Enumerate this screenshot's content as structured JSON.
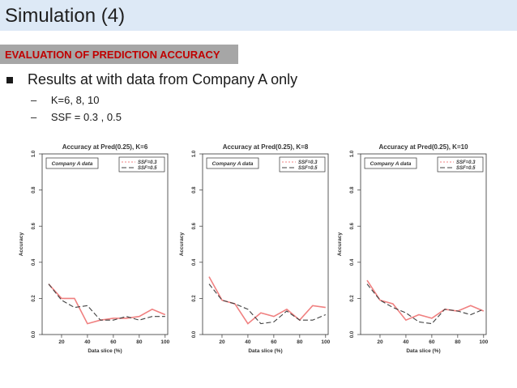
{
  "slide": {
    "title": "Simulation (4)",
    "section": "EVALUATION OF PREDICTION ACCURACY",
    "bullet": "Results at with data from Company A only",
    "subs": [
      "K=6, 8, 10",
      "SSF = 0.3 , 0.5"
    ],
    "dash": "–"
  },
  "colors": {
    "title_bg": "#dde9f6",
    "section_bg": "#a6a6a6",
    "section_text": "#c00000",
    "ssf03": "#f08080",
    "ssf05": "#404040"
  },
  "chart_data": [
    {
      "type": "line",
      "title": "Accuracy at Pred(0.25), K=6",
      "xlabel": "Data slice (%)",
      "ylabel": "Accuracy",
      "legend_box": "Company A data",
      "xlim": [
        5,
        102
      ],
      "ylim": [
        0,
        1
      ],
      "xticks": [
        20,
        40,
        60,
        80,
        100
      ],
      "yticks": [
        0.0,
        0.2,
        0.4,
        0.6,
        0.8,
        1.0
      ],
      "x": [
        10,
        20,
        30,
        40,
        50,
        60,
        70,
        80,
        90,
        100
      ],
      "series": [
        {
          "name": "SSF=0.3",
          "values": [
            0.28,
            0.2,
            0.2,
            0.06,
            0.08,
            0.09,
            0.09,
            0.1,
            0.14,
            0.11
          ]
        },
        {
          "name": "SSF=0.5",
          "values": [
            0.28,
            0.19,
            0.15,
            0.16,
            0.08,
            0.08,
            0.1,
            0.08,
            0.1,
            0.1
          ]
        }
      ]
    },
    {
      "type": "line",
      "title": "Accuracy at Pred(0.25), K=8",
      "xlabel": "Data slice (%)",
      "ylabel": "Accuracy",
      "legend_box": "Company A data",
      "xlim": [
        5,
        102
      ],
      "ylim": [
        0,
        1
      ],
      "xticks": [
        20,
        40,
        60,
        80,
        100
      ],
      "yticks": [
        0.0,
        0.2,
        0.4,
        0.6,
        0.8,
        1.0
      ],
      "x": [
        10,
        20,
        30,
        40,
        50,
        60,
        70,
        80,
        90,
        100
      ],
      "series": [
        {
          "name": "SSF=0.3",
          "values": [
            0.32,
            0.19,
            0.17,
            0.06,
            0.12,
            0.1,
            0.14,
            0.08,
            0.16,
            0.15
          ]
        },
        {
          "name": "SSF=0.5",
          "values": [
            0.28,
            0.19,
            0.17,
            0.14,
            0.06,
            0.07,
            0.13,
            0.08,
            0.08,
            0.11
          ]
        }
      ]
    },
    {
      "type": "line",
      "title": "Accuracy at Pred(0.25), K=10",
      "xlabel": "Data slice (%)",
      "ylabel": "Accuracy",
      "legend_box": "Company A data",
      "xlim": [
        5,
        102
      ],
      "ylim": [
        0,
        1
      ],
      "xticks": [
        20,
        40,
        60,
        80,
        100
      ],
      "yticks": [
        0.0,
        0.2,
        0.4,
        0.6,
        0.8,
        1.0
      ],
      "x": [
        10,
        20,
        30,
        40,
        50,
        60,
        70,
        80,
        90,
        100
      ],
      "series": [
        {
          "name": "SSF=0.3",
          "values": [
            0.3,
            0.19,
            0.17,
            0.08,
            0.11,
            0.09,
            0.14,
            0.13,
            0.16,
            0.13
          ]
        },
        {
          "name": "SSF=0.5",
          "values": [
            0.28,
            0.19,
            0.15,
            0.12,
            0.07,
            0.06,
            0.14,
            0.13,
            0.11,
            0.14
          ]
        }
      ]
    }
  ]
}
